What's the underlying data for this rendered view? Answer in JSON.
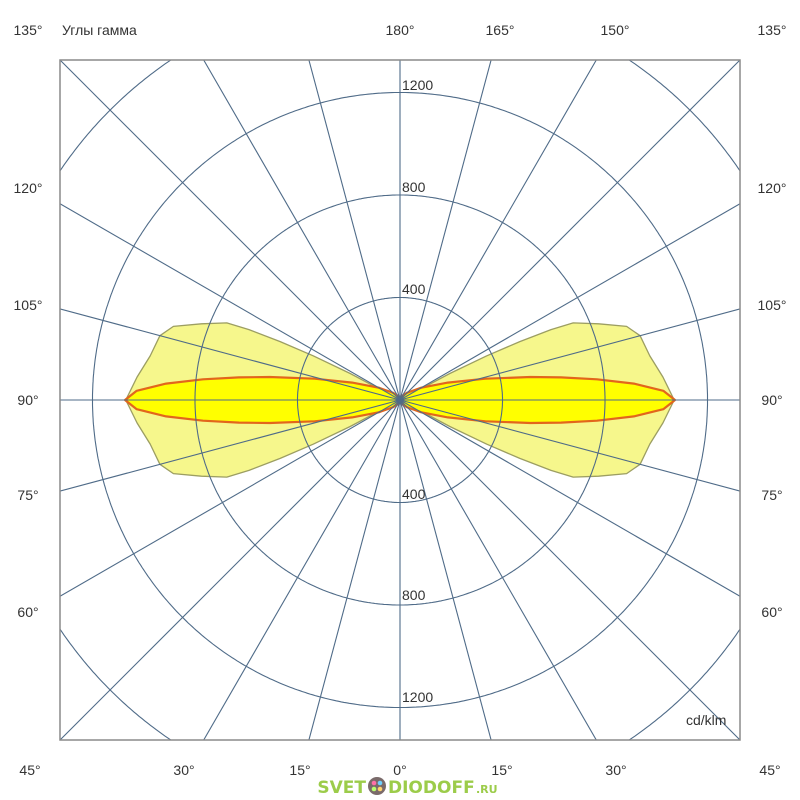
{
  "chart_data": {
    "type": "polar",
    "title": "Углы гамма",
    "unit_label": "cd/klm",
    "radial_ticks": [
      400,
      800,
      1200
    ],
    "radial_grid": [
      400,
      800,
      1200,
      1600
    ],
    "angle_step_deg": 15,
    "angle_labels": {
      "top": [
        "135°",
        "180°",
        "165°",
        "150°",
        "135°"
      ],
      "left": [
        "120°",
        "105°",
        "90°",
        "75°",
        "60°"
      ],
      "right": [
        "120°",
        "105°",
        "90°",
        "75°",
        "60°"
      ],
      "bottom": [
        "45°",
        "30°",
        "15°",
        "0°",
        "15°",
        "30°",
        "45°"
      ]
    },
    "series": [
      {
        "style": "outer-pale-yellow",
        "fill": "#f6f78c",
        "stroke": "#9c9e62",
        "gamma": [
          60,
          62,
          63,
          64,
          65,
          66,
          69,
          72,
          75,
          80,
          85,
          90,
          95,
          100,
          105,
          108,
          111,
          114,
          115,
          116,
          117,
          118,
          120
        ],
        "values": [
          0,
          220,
          380,
          520,
          650,
          740,
          830,
          930,
          970,
          990,
          1030,
          1070,
          1030,
          990,
          970,
          930,
          830,
          740,
          650,
          520,
          380,
          220,
          0
        ]
      },
      {
        "style": "inner-bright-yellow",
        "fill": "#ffff00",
        "stroke": "#e2661c",
        "gamma": [
          30,
          45,
          60,
          70,
          76,
          80,
          82,
          84,
          86,
          88,
          90,
          92,
          94,
          96,
          98,
          100,
          104,
          110,
          120,
          135,
          150
        ],
        "values": [
          20,
          41,
          96,
          199,
          343,
          516,
          635,
          773,
          915,
          1028,
          1073,
          1028,
          915,
          773,
          635,
          516,
          343,
          199,
          96,
          41,
          20
        ]
      }
    ],
    "symmetry": "mirrored left-right"
  },
  "colors": {
    "grid": "#4f6b88",
    "frame": "#8a8a8a",
    "logo": "#9ccc4a"
  },
  "logo": {
    "text_left": "SVET",
    "text_right": "DIODOFF",
    "suffix": ".RU"
  }
}
